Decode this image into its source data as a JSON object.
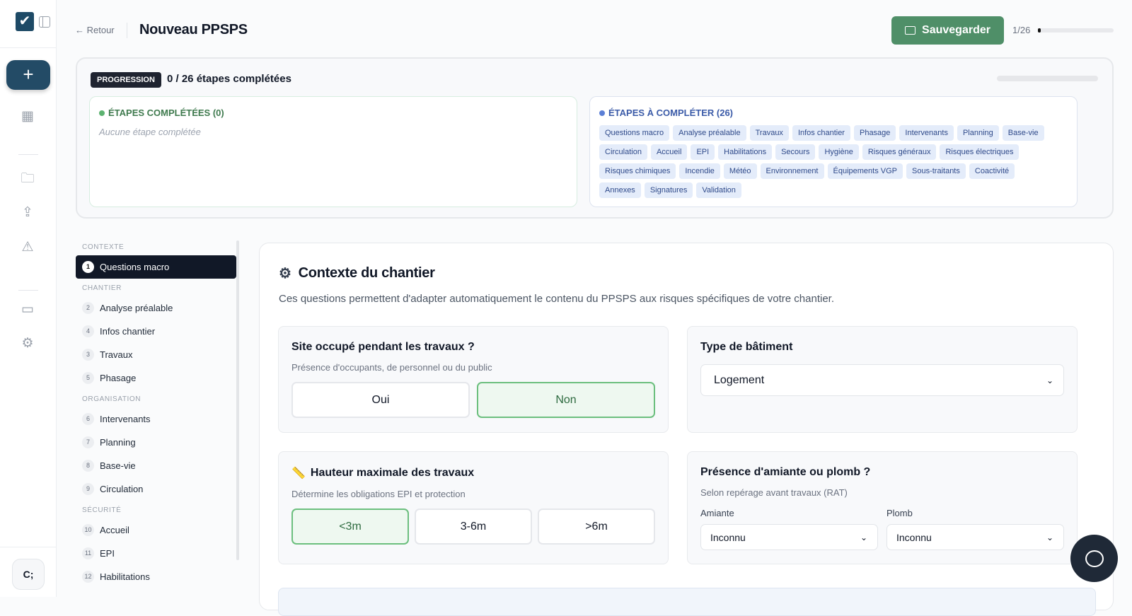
{
  "header": {
    "back": "← Retour",
    "title": "Nouveau PPSPS",
    "save": "Sauvegarder",
    "count": "1/26",
    "progress_fraction": 0.04
  },
  "rail": {
    "user_initials": "C;",
    "icons": [
      "logo-check-icon",
      "sidebar-toggle-icon",
      "plus-icon",
      "dashboard-icon",
      "folder-icon",
      "upload-icon",
      "warning-icon",
      "card-icon",
      "settings-icon"
    ]
  },
  "progress": {
    "badge": "PROGRESSION",
    "title": "0 / 26 étapes complétées",
    "fraction": 0,
    "completed_title": "ÉTAPES COMPLÉTÉES (0)",
    "completed_empty": "Aucune étape complétée",
    "todo_title": "ÉTAPES À COMPLÉTER (26)",
    "todo": [
      "Questions macro",
      "Analyse préalable",
      "Travaux",
      "Infos chantier",
      "Phasage",
      "Intervenants",
      "Planning",
      "Base-vie",
      "Circulation",
      "Accueil",
      "EPI",
      "Habilitations",
      "Secours",
      "Hygiène",
      "Risques généraux",
      "Risques électriques",
      "Risques chimiques",
      "Incendie",
      "Météo",
      "Environnement",
      "Équipements VGP",
      "Sous-traitants",
      "Coactivité",
      "Annexes",
      "Signatures",
      "Validation"
    ],
    "colors": {
      "completed": "#5cb270",
      "todo": "#5b7fd6"
    }
  },
  "steps": [
    {
      "section": "CONTEXTE",
      "items": [
        {
          "n": "1",
          "label": "Questions macro",
          "active": true
        }
      ]
    },
    {
      "section": "CHANTIER",
      "items": [
        {
          "n": "2",
          "label": "Analyse préalable"
        },
        {
          "n": "4",
          "label": "Infos chantier"
        },
        {
          "n": "3",
          "label": "Travaux"
        },
        {
          "n": "5",
          "label": "Phasage"
        }
      ]
    },
    {
      "section": "ORGANISATION",
      "items": [
        {
          "n": "6",
          "label": "Intervenants"
        },
        {
          "n": "7",
          "label": "Planning"
        },
        {
          "n": "8",
          "label": "Base-vie"
        },
        {
          "n": "9",
          "label": "Circulation"
        }
      ]
    },
    {
      "section": "SÉCURITÉ",
      "items": [
        {
          "n": "10",
          "label": "Accueil"
        },
        {
          "n": "11",
          "label": "EPI"
        },
        {
          "n": "12",
          "label": "Habilitations"
        }
      ]
    }
  ],
  "main": {
    "title": "Contexte du chantier",
    "desc": "Ces questions permettent d'adapter automatiquement le contenu du PPSPS aux risques spécifiques de votre chantier.",
    "q1": {
      "title": "Site occupé pendant les travaux ?",
      "desc": "Présence d'occupants, de personnel ou du public",
      "options": [
        "Oui",
        "Non"
      ],
      "selected": "Non"
    },
    "q2": {
      "title": "Type de bâtiment",
      "value": "Logement"
    },
    "q3": {
      "title": "Hauteur maximale des travaux",
      "desc": "Détermine les obligations EPI et protection",
      "options": [
        "<3m",
        "3-6m",
        ">6m"
      ],
      "selected": "<3m"
    },
    "q4": {
      "title": "Présence d'amiante ou plomb ?",
      "desc": "Selon repérage avant travaux (RAT)",
      "amiante_label": "Amiante",
      "amiante_value": "Inconnu",
      "plomb_label": "Plomb",
      "plomb_value": "Inconnu"
    }
  },
  "accent": "#4f8f68"
}
